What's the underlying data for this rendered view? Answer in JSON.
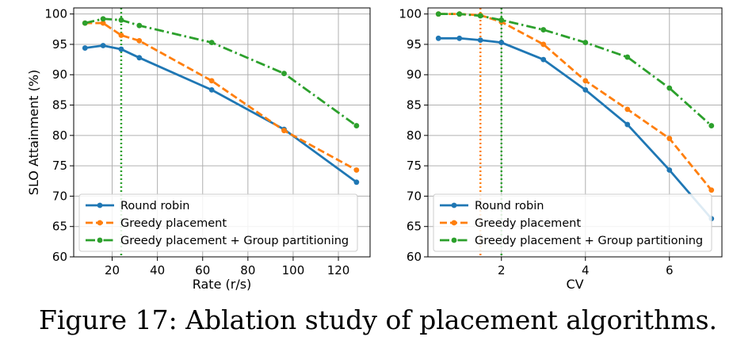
{
  "caption": "Figure 17: Ablation study of placement algorithms.",
  "colors": {
    "round_robin": "#1f77b4",
    "greedy": "#ff7f0e",
    "greedy_group": "#2ca02c",
    "grid": "#b0b0b0"
  },
  "chart_data": [
    {
      "type": "line",
      "xlabel": "Rate (r/s)",
      "ylabel": "SLO Attainment (%)",
      "xlim": [
        3,
        134
      ],
      "ylim": [
        60,
        101
      ],
      "xticks": [
        20,
        40,
        60,
        80,
        100,
        120
      ],
      "xtick_labels": [
        "20",
        "40",
        "60",
        "80",
        "100",
        "120"
      ],
      "yticks": [
        60,
        65,
        70,
        75,
        80,
        85,
        90,
        95,
        100
      ],
      "ytick_labels": [
        "60",
        "65",
        "70",
        "75",
        "80",
        "85",
        "90",
        "95",
        "100"
      ],
      "grid": true,
      "legend": "lower-left",
      "vlines": [
        {
          "x": 24,
          "series": "Greedy placement + Group partitioning"
        }
      ],
      "series": [
        {
          "name": "Round robin",
          "style": "solid",
          "color_key": "round_robin",
          "x": [
            8,
            16,
            24,
            32,
            64,
            96,
            128
          ],
          "y": [
            94.4,
            94.8,
            94.2,
            92.8,
            87.5,
            81.0,
            72.3
          ]
        },
        {
          "name": "Greedy placement",
          "style": "dashed",
          "color_key": "greedy",
          "x": [
            8,
            16,
            24,
            32,
            64,
            96,
            128
          ],
          "y": [
            98.5,
            98.5,
            96.5,
            95.6,
            89.0,
            80.8,
            74.3
          ]
        },
        {
          "name": "Greedy placement + Group partitioning",
          "style": "dashdot",
          "color_key": "greedy_group",
          "x": [
            8,
            16,
            24,
            32,
            64,
            96,
            128
          ],
          "y": [
            98.5,
            99.2,
            99.0,
            98.1,
            95.3,
            90.2,
            81.6
          ]
        }
      ]
    },
    {
      "type": "line",
      "xlabel": "CV",
      "ylabel": "",
      "xlim": [
        0.25,
        7.25
      ],
      "ylim": [
        60,
        101
      ],
      "xticks": [
        2,
        4,
        6
      ],
      "xtick_labels": [
        "2",
        "4",
        "6"
      ],
      "yticks": [
        60,
        65,
        70,
        75,
        80,
        85,
        90,
        95,
        100
      ],
      "ytick_labels": [
        "60",
        "65",
        "70",
        "75",
        "80",
        "85",
        "90",
        "95",
        "100"
      ],
      "grid": true,
      "legend": "lower-left",
      "vlines": [
        {
          "x": 1.5,
          "series": "Greedy placement"
        },
        {
          "x": 2,
          "series": "Greedy placement + Group partitioning"
        }
      ],
      "series": [
        {
          "name": "Round robin",
          "style": "solid",
          "color_key": "round_robin",
          "x": [
            0.5,
            1,
            1.5,
            2,
            3,
            4,
            5,
            6,
            7
          ],
          "y": [
            96.0,
            96.0,
            95.7,
            95.3,
            92.5,
            87.5,
            81.8,
            74.3,
            66.3
          ]
        },
        {
          "name": "Greedy placement",
          "style": "dashed",
          "color_key": "greedy",
          "x": [
            0.5,
            1,
            1.5,
            2,
            3,
            4,
            5,
            6,
            7
          ],
          "y": [
            100.0,
            100.0,
            99.8,
            98.7,
            95.0,
            89.0,
            84.3,
            79.5,
            71.0
          ]
        },
        {
          "name": "Greedy placement + Group partitioning",
          "style": "dashdot",
          "color_key": "greedy_group",
          "x": [
            0.5,
            1,
            1.5,
            2,
            3,
            4,
            5,
            6,
            7
          ],
          "y": [
            100.0,
            100.0,
            99.7,
            99.0,
            97.4,
            95.3,
            92.9,
            87.8,
            81.6
          ]
        }
      ]
    }
  ]
}
